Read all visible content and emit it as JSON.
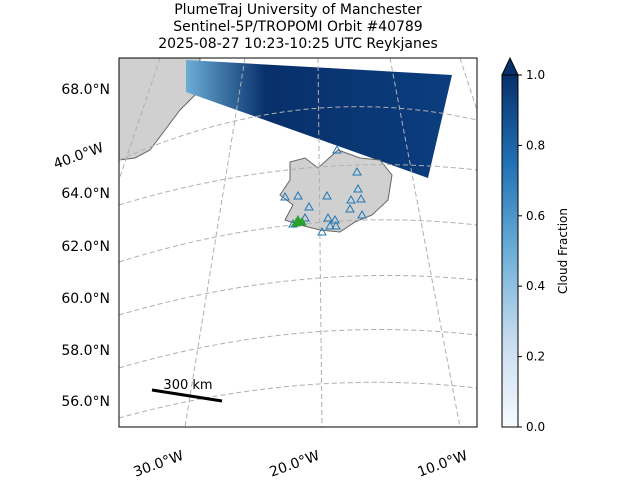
{
  "title": {
    "line1": "PlumeTraj    University of Manchester",
    "line2": "Sentinel-5P/TROPOMI Orbit #40789",
    "line3": "2025-08-27   10:23-10:25 UTC   Reykjanes"
  },
  "map": {
    "lat_labels": [
      "68.0°N",
      "64.0°N",
      "62.0°N",
      "60.0°N",
      "58.0°N",
      "56.0°N"
    ],
    "lon_labels": [
      "40.0°W",
      "30.0°W",
      "20.0°W",
      "10.0°W"
    ],
    "scale_bar": "300 km"
  },
  "colorbar": {
    "label": "Cloud Fraction",
    "lim": [
      0,
      1
    ],
    "ticks": [
      {
        "value": 0,
        "label": "0.0"
      },
      0.2,
      0.4,
      0.6,
      0.8,
      {
        "value": 1,
        "label": "1.0"
      }
    ]
  }
}
